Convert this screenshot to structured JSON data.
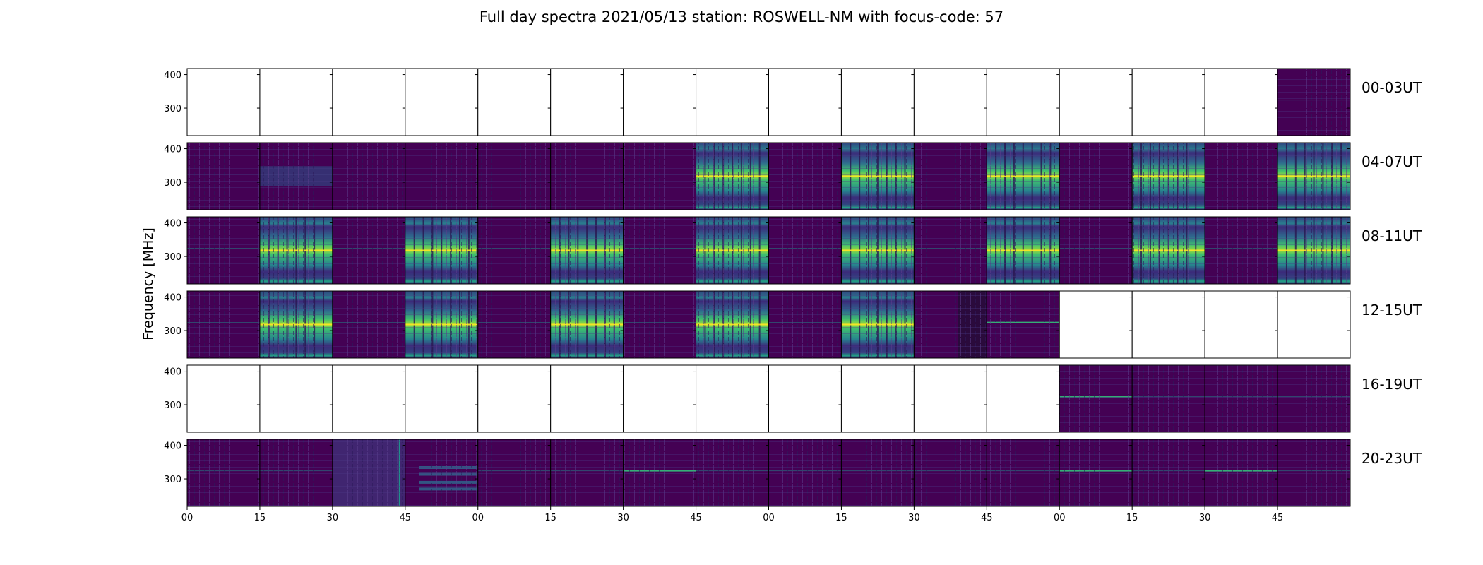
{
  "chart_data": {
    "type": "heatmap",
    "title": "Full day spectra 2021/05/13 station: ROSWELL-NM with focus-code: 57",
    "ylabel": "Frequency [MHz]",
    "xlabel": "",
    "y_ticks": [
      "400",
      "300"
    ],
    "x_ticks": [
      "00",
      "15",
      "30",
      "45",
      "00",
      "15",
      "30",
      "45",
      "00",
      "15",
      "30",
      "45",
      "00",
      "15",
      "30",
      "45"
    ],
    "rows": [
      {
        "label": "00-03UT",
        "panels": [
          "empty",
          "empty",
          "empty",
          "empty",
          "empty",
          "empty",
          "empty",
          "empty",
          "empty",
          "empty",
          "empty",
          "empty",
          "empty",
          "empty",
          "empty",
          "quiet"
        ]
      },
      {
        "label": "04-07UT",
        "panels": [
          "quiet",
          "weak",
          "quiet",
          "quiet",
          "quiet",
          "quiet",
          "quiet",
          "strong",
          "quiet",
          "strong",
          "quiet",
          "strong",
          "quiet",
          "strong",
          "quiet",
          "strong"
        ]
      },
      {
        "label": "08-11UT",
        "panels": [
          "quiet",
          "strong",
          "quiet",
          "strong",
          "quiet",
          "strong",
          "quiet",
          "strong",
          "quiet",
          "strong",
          "quiet",
          "strong",
          "quiet",
          "strong",
          "quiet",
          "strong"
        ]
      },
      {
        "label": "12-15UT",
        "panels": [
          "quiet",
          "strong",
          "quiet",
          "strong",
          "quiet",
          "strong",
          "quiet",
          "strong",
          "quiet",
          "strong",
          "partial",
          "line",
          "empty",
          "empty",
          "empty",
          "empty"
        ]
      },
      {
        "label": "16-19UT",
        "panels": [
          "empty",
          "empty",
          "empty",
          "empty",
          "empty",
          "empty",
          "empty",
          "empty",
          "empty",
          "empty",
          "empty",
          "empty",
          "line",
          "quiet",
          "quiet",
          "quiet"
        ]
      },
      {
        "label": "20-23UT",
        "panels": [
          "quiet",
          "quiet",
          "noisy",
          "banded",
          "quiet",
          "quiet",
          "line",
          "quiet",
          "quiet",
          "quiet",
          "quiet",
          "quiet",
          "line",
          "quiet",
          "line",
          "quiet"
        ]
      }
    ],
    "colors": {
      "bg": "#440154",
      "low": "#3b2a7a",
      "mid": "#21918c",
      "high": "#35b779",
      "peak": "#fde725"
    }
  }
}
